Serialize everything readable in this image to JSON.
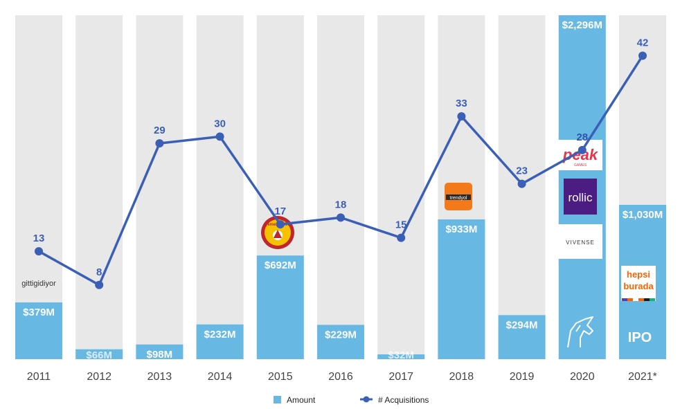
{
  "colors": {
    "background_column": "#e8e8e8",
    "bar": "#67b8e3",
    "line": "#3a5fb5",
    "count_label": "#3a5fb5",
    "year_label": "#444444"
  },
  "chart_data": {
    "type": "bar+line",
    "categories": [
      "2011",
      "2012",
      "2013",
      "2014",
      "2015",
      "2016",
      "2017",
      "2018",
      "2019",
      "2020",
      "2021*"
    ],
    "series": [
      {
        "name": "Amount",
        "type": "bar",
        "unit": "$M",
        "values": [
          379,
          66,
          98,
          232,
          692,
          229,
          32,
          933,
          294,
          2296,
          1030
        ],
        "labels": [
          "$379M",
          "$66M",
          "$98M",
          "$232M",
          "$692M",
          "$229M",
          "$32M",
          "$933M",
          "$294M",
          "$2,296M",
          "$1,030M"
        ]
      },
      {
        "name": "# Acquisitions",
        "type": "line",
        "values": [
          13,
          8,
          29,
          30,
          17,
          18,
          15,
          33,
          23,
          28,
          42
        ]
      }
    ],
    "amount_axis_max": 2296,
    "count_axis_range": [
      -3,
      48
    ],
    "legend": [
      {
        "name": "Amount",
        "marker": "square"
      },
      {
        "name": "# Acquisitions",
        "marker": "line-dot"
      }
    ],
    "annotations": {
      "2011": [
        "gittigidiyor"
      ],
      "2015": [
        "yemeksepeti"
      ],
      "2018": [
        "trendyol"
      ],
      "2020": [
        "peak",
        "GAMES",
        "rollic",
        "VIVENSE"
      ],
      "2021*": [
        "hepsi",
        "burada",
        "IPO"
      ]
    }
  }
}
